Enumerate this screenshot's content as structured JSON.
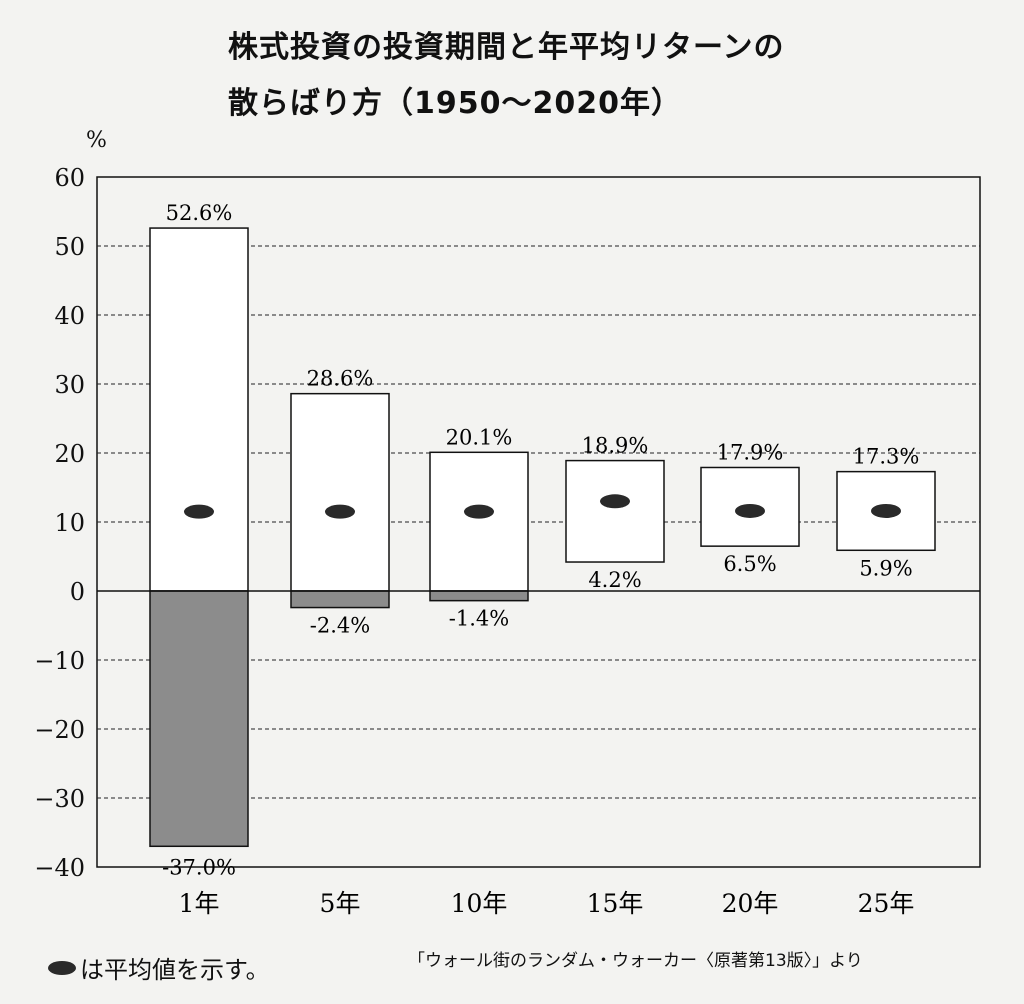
{
  "chart_data": {
    "type": "bar",
    "subtype": "floating-range",
    "title_line1": "株式投資の投資期間と年平均リターンの",
    "title_line2": "散らばり方（1950〜2020年）",
    "ylabel": "%",
    "ylim": [
      -40,
      60
    ],
    "yticks": [
      60,
      50,
      40,
      30,
      20,
      10,
      0,
      -10,
      -20,
      -30,
      -40
    ],
    "grid": "dashed-horizontal",
    "categories": [
      "1年",
      "5年",
      "10年",
      "15年",
      "20年",
      "25年"
    ],
    "max": [
      52.6,
      28.6,
      20.1,
      18.9,
      17.9,
      17.3
    ],
    "min": [
      -37.0,
      -2.4,
      -1.4,
      4.2,
      6.5,
      5.9
    ],
    "max_labels": [
      "52.6%",
      "28.6%",
      "20.1%",
      "18.9%",
      "17.9%",
      "17.3%"
    ],
    "min_labels": [
      "-37.0%",
      "-2.4%",
      "-1.4%",
      "4.2%",
      "6.5%",
      "5.9%"
    ],
    "mean": [
      11.5,
      11.5,
      11.5,
      13.0,
      11.6,
      11.6
    ],
    "legend": "●は平均値を示す。",
    "legend_text": "は平均値を示す。",
    "source": "「ウォール街のランダム・ウォーカー〈原著第13版〉」より",
    "colors": {
      "positive": "#ffffff",
      "negative": "#8c8c8c",
      "mean": "#2a2a2a"
    }
  }
}
